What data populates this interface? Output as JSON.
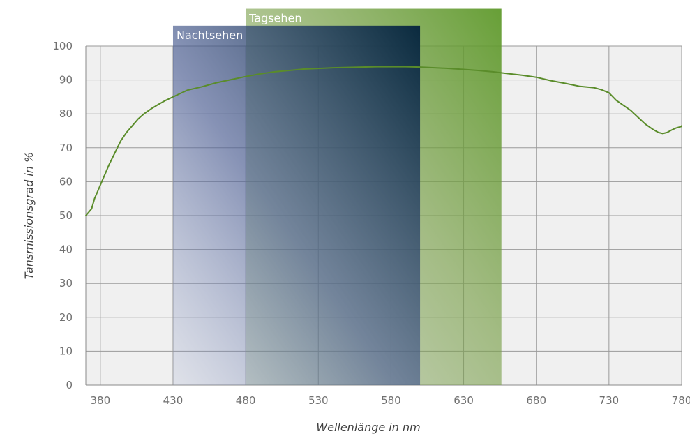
{
  "chart_data": {
    "type": "line",
    "xlabel": "Wellenlänge in nm",
    "ylabel": "Tansmissionsgrad in %",
    "xlim": [
      370,
      780
    ],
    "ylim": [
      0,
      100
    ],
    "x_ticks": [
      380,
      430,
      480,
      530,
      580,
      630,
      680,
      730,
      780
    ],
    "y_ticks": [
      0,
      10,
      20,
      30,
      40,
      50,
      60,
      70,
      80,
      90,
      100
    ],
    "grid": true,
    "bands": [
      {
        "label": "Nachtsehen",
        "from": 430,
        "to": 600,
        "top": 106
      },
      {
        "label": "Tagsehen",
        "from": 480,
        "to": 656,
        "top": 111
      }
    ],
    "series": [
      {
        "color": "#5a8c2a",
        "x": [
          370,
          372,
          374,
          376,
          378,
          380,
          383,
          386,
          390,
          394,
          398,
          402,
          406,
          410,
          415,
          420,
          425,
          430,
          435,
          440,
          450,
          460,
          470,
          480,
          490,
          500,
          510,
          520,
          530,
          540,
          550,
          560,
          570,
          580,
          590,
          600,
          610,
          620,
          630,
          640,
          650,
          660,
          670,
          680,
          690,
          700,
          710,
          715,
          720,
          725,
          730,
          735,
          740,
          745,
          750,
          755,
          760,
          764,
          767,
          770,
          773,
          776,
          780,
          782
        ],
        "y": [
          50,
          51,
          52,
          55,
          57,
          59,
          62,
          65,
          68.5,
          72,
          74.5,
          76.5,
          78.5,
          80,
          81.5,
          82.8,
          84,
          85,
          86,
          87,
          88,
          89.2,
          90.1,
          91,
          91.8,
          92.4,
          92.8,
          93.2,
          93.4,
          93.6,
          93.7,
          93.8,
          93.9,
          93.9,
          93.9,
          93.8,
          93.6,
          93.4,
          93.1,
          92.8,
          92.4,
          91.9,
          91.4,
          90.8,
          89.8,
          89.0,
          88.1,
          87.9,
          87.7,
          87.1,
          86.2,
          84.0,
          82.5,
          81.0,
          79.0,
          77.0,
          75.5,
          74.5,
          74.2,
          74.5,
          75.2,
          75.8,
          76.3,
          76.5
        ]
      }
    ]
  }
}
